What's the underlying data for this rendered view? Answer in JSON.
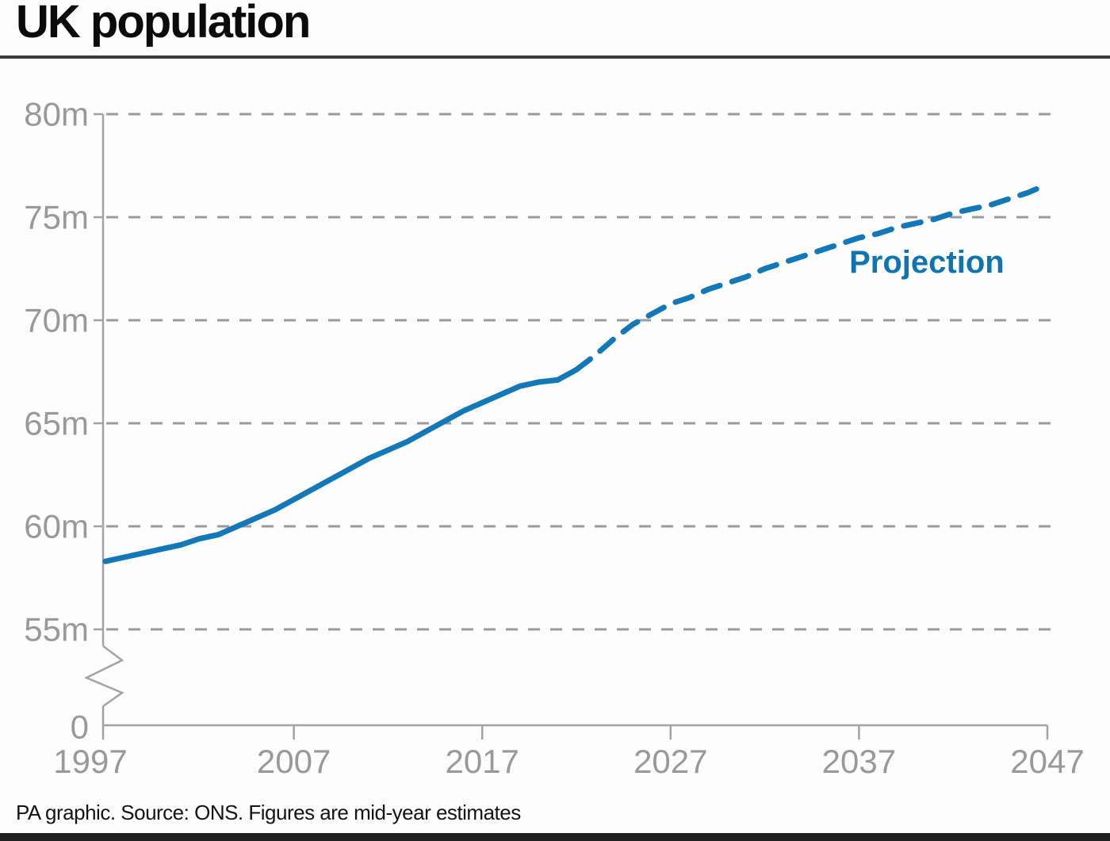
{
  "title": "UK population",
  "footer": "PA graphic. Source: ONS. Figures are mid-year estimates",
  "colors": {
    "line_blue": "#1278b8",
    "projection_label_blue": "#0e74b2",
    "axis_gray": "#a1a3a5",
    "grid_gray": "#999b9d",
    "tick_label_gray": "#97999b",
    "title_black": "#0b0b0b",
    "rule_dark": "#3b3b3b",
    "bottom_bar_dark": "#1e1e1e"
  },
  "chart_data": {
    "type": "line",
    "title": "UK population",
    "xlabel": "",
    "ylabel": "",
    "x_range": [
      1997,
      2047
    ],
    "ylim": [
      0,
      80
    ],
    "y_axis_break": true,
    "grid": "horizontal dashed",
    "x_tick_labels": [
      "1997",
      "2007",
      "2017",
      "2027",
      "2037",
      "2047"
    ],
    "x_tick_values": [
      1997,
      2007,
      2017,
      2027,
      2037,
      2047
    ],
    "y_tick_labels": [
      "80m",
      "75m",
      "70m",
      "65m",
      "60m",
      "55m"
    ],
    "y_tick_values": [
      80,
      75,
      70,
      65,
      60,
      55
    ],
    "zero_label": "0",
    "unit": "millions",
    "series": [
      {
        "name": "Mid-year estimates",
        "style": "solid",
        "x": [
          1997,
          1998,
          1999,
          2000,
          2001,
          2002,
          2003,
          2004,
          2005,
          2006,
          2007,
          2008,
          2009,
          2010,
          2011,
          2012,
          2013,
          2014,
          2015,
          2016,
          2017,
          2018,
          2019,
          2020,
          2021,
          2022
        ],
        "values": [
          58.3,
          58.5,
          58.7,
          58.9,
          59.1,
          59.4,
          59.6,
          60.0,
          60.4,
          60.8,
          61.3,
          61.8,
          62.3,
          62.8,
          63.3,
          63.7,
          64.1,
          64.6,
          65.1,
          65.6,
          66.0,
          66.4,
          66.8,
          67.0,
          67.1,
          67.6
        ]
      },
      {
        "name": "Projection",
        "style": "dashed",
        "x": [
          2022,
          2023,
          2024,
          2025,
          2026,
          2027,
          2028,
          2029,
          2030,
          2031,
          2032,
          2033,
          2034,
          2035,
          2036,
          2037,
          2038,
          2039,
          2040,
          2041,
          2042,
          2043,
          2044,
          2045,
          2046,
          2047
        ],
        "values": [
          67.6,
          68.3,
          69.1,
          69.8,
          70.3,
          70.8,
          71.1,
          71.5,
          71.8,
          72.1,
          72.5,
          72.8,
          73.1,
          73.4,
          73.7,
          74.0,
          74.2,
          74.5,
          74.7,
          74.9,
          75.2,
          75.4,
          75.6,
          75.9,
          76.2,
          76.6
        ]
      }
    ],
    "annotation": {
      "text": "Projection",
      "year": 2040.6,
      "value": 72.3
    },
    "legend_position": "inline annotation"
  }
}
